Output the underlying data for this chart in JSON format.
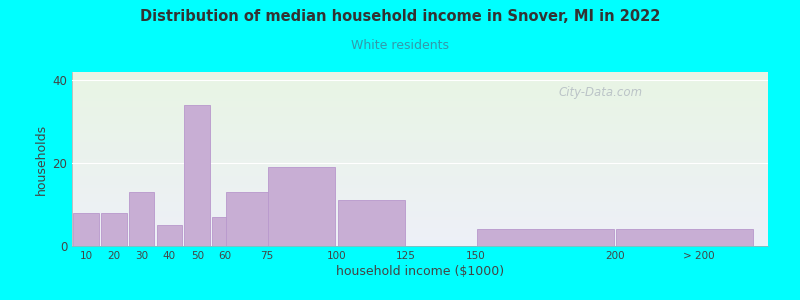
{
  "title": "Distribution of median household income in Snover, MI in 2022",
  "subtitle": "White residents",
  "xlabel": "household income ($1000)",
  "ylabel": "households",
  "background_color": "#00FFFF",
  "bar_color": "#c8aed4",
  "bar_edge_color": "#b898cc",
  "title_color": "#333333",
  "subtitle_color": "#3399aa",
  "bar_values": [
    8,
    8,
    13,
    5,
    34,
    7,
    13,
    19,
    11,
    0,
    4,
    4
  ],
  "bar_widths": [
    10,
    10,
    10,
    10,
    10,
    15,
    25,
    25,
    25,
    50,
    50,
    50
  ],
  "bar_lefts": [
    5,
    15,
    25,
    35,
    45,
    55,
    60,
    75,
    100,
    125,
    150,
    200
  ],
  "yticks": [
    0,
    20,
    40
  ],
  "ylim": [
    0,
    42
  ],
  "xlim": [
    5,
    255
  ],
  "xtick_positions": [
    10,
    20,
    30,
    40,
    50,
    60,
    75,
    100,
    125,
    150,
    200,
    230
  ],
  "xtick_labels": [
    "10",
    "20",
    "30",
    "40",
    "50",
    "60",
    "75",
    "100",
    "125",
    "150",
    "200",
    "> 200"
  ],
  "watermark": "City-Data.com",
  "gradient_top_color": "#e8f5e4",
  "gradient_bottom_color": "#eef0f8"
}
